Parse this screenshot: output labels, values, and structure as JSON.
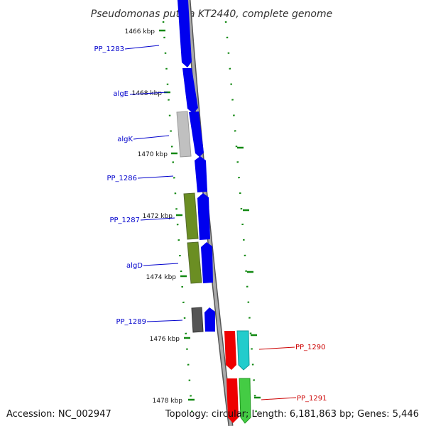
{
  "title": "Pseudomonas putida KT2440, complete genome",
  "footer": {
    "accession": "Accession: NC_002947",
    "summary": "Topology: circular; Length: 6,181,863 bp; Genes: 5,446"
  },
  "ticks": [
    "1466 kbp",
    "1468 kbp",
    "1470 kbp",
    "1472 kbp",
    "1474 kbp",
    "1476 kbp",
    "1478 kbp"
  ],
  "genes": [
    {
      "label": "PP_1283",
      "strand": "+",
      "color": "#0000ee"
    },
    {
      "label": "algE",
      "strand": "+",
      "color": "#0000ee"
    },
    {
      "label": "algK",
      "strand": "+",
      "color": "#0000ee"
    },
    {
      "label": "PP_1286",
      "strand": "+",
      "color": "#0000ee"
    },
    {
      "label": "PP_1287",
      "strand": "+",
      "color": "#0000ee"
    },
    {
      "label": "algD",
      "strand": "+",
      "color": "#0000ee"
    },
    {
      "label": "PP_1289",
      "strand": "+",
      "color": "#0000ee"
    },
    {
      "label": "PP_1290",
      "strand": "-",
      "color": "#ee0000"
    },
    {
      "label": "PP_1291",
      "strand": "-",
      "color": "#ee0000"
    }
  ],
  "colors": {
    "plus_strand": "#0000ee",
    "minus_strand": "#ee0000",
    "backbone": "#888888",
    "tick": "#118811",
    "cog_light_gray": "#bbbbbb",
    "cog_olive": "#6b8e23",
    "cog_dark_gray": "#555555",
    "cog_cyan": "#22cccc",
    "cog_green": "#44cc44"
  }
}
